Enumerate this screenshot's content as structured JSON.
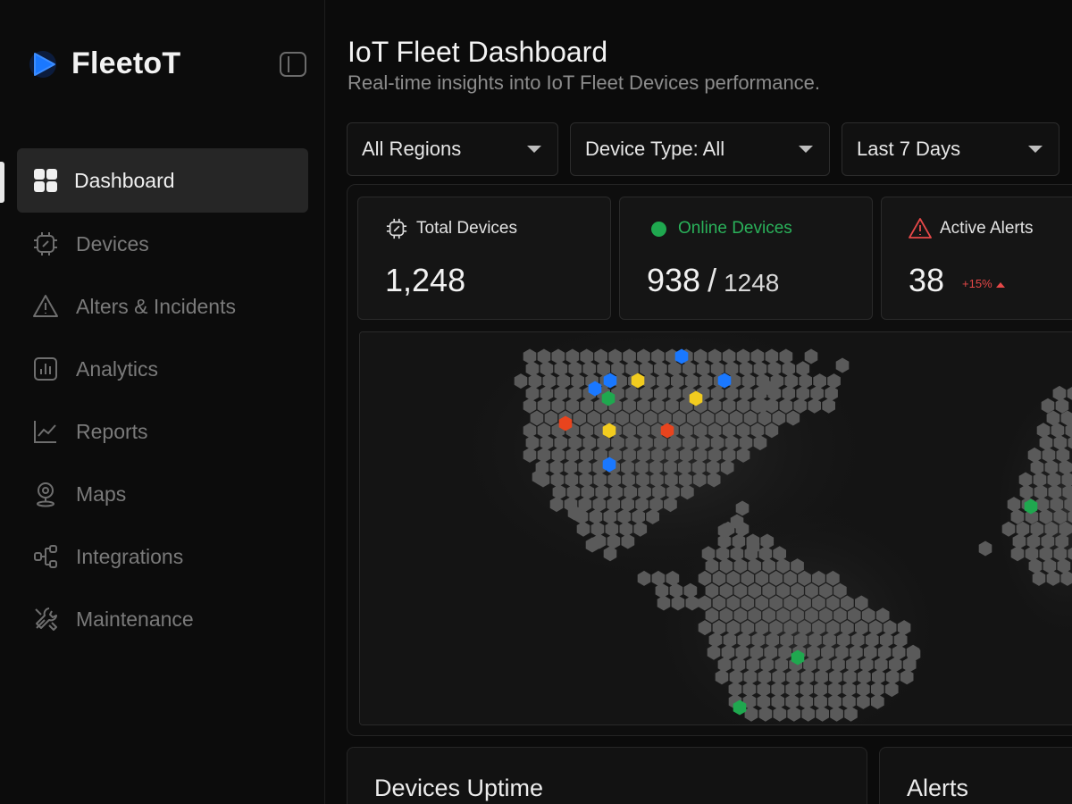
{
  "brand": {
    "name": "FleetoT"
  },
  "sidebar": {
    "items": [
      {
        "label": "Dashboard",
        "icon": "grid-icon",
        "active": true
      },
      {
        "label": "Devices",
        "icon": "chip-icon"
      },
      {
        "label": "Alters & Incidents",
        "icon": "warning-icon"
      },
      {
        "label": "Analytics",
        "icon": "bar-chart-icon"
      },
      {
        "label": "Reports",
        "icon": "line-chart-icon"
      },
      {
        "label": "Maps",
        "icon": "map-pin-icon"
      },
      {
        "label": "Integrations",
        "icon": "integration-icon"
      },
      {
        "label": "Maintenance",
        "icon": "tools-icon"
      }
    ]
  },
  "header": {
    "title": "IoT Fleet Dashboard",
    "subtitle": "Real-time insights into IoT Fleet Devices performance."
  },
  "filters": {
    "region": "All Regions",
    "device_type": "Device Type: All",
    "period": "Last 7 Days"
  },
  "stats": {
    "total": {
      "label": "Total Devices",
      "value": "1,248"
    },
    "online": {
      "label": "Online Devices",
      "value": "938",
      "separator": "/",
      "total": "1248"
    },
    "alerts": {
      "label": "Active Alerts",
      "value": "38",
      "trend": "+15%"
    }
  },
  "map": {
    "colors": {
      "base": "#5a5a5a",
      "blue": "#1a78ff",
      "yellow": "#f2cc1f",
      "red": "#e8441e",
      "green": "#1fa84f"
    }
  },
  "sections": {
    "uptime": "Devices Uptime",
    "alerts": "Alerts"
  },
  "colors": {
    "accent": "#1a78ff",
    "online": "#1fa84f",
    "alert": "#e64848"
  }
}
